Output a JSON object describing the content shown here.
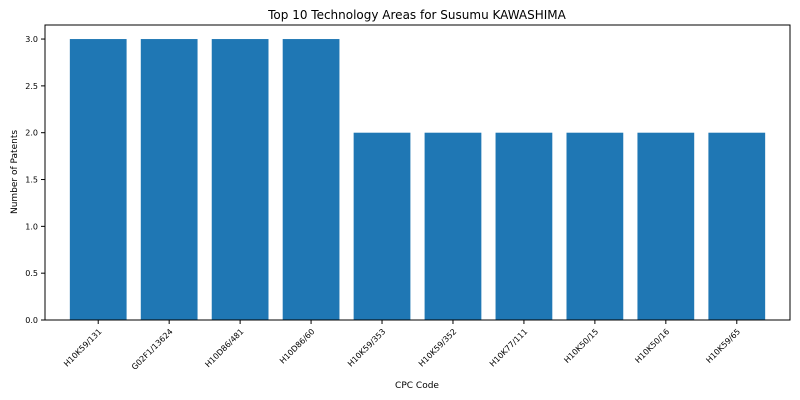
{
  "chart_data": {
    "type": "bar",
    "title": "Top 10 Technology Areas for Susumu KAWASHIMA",
    "xlabel": "CPC Code",
    "ylabel": "Number of Patents",
    "categories": [
      "H10K59/131",
      "G02F1/13624",
      "H10D86/481",
      "H10D86/60",
      "H10K59/353",
      "H10K59/352",
      "H10K77/111",
      "H10K50/15",
      "H10K50/16",
      "H10K59/65"
    ],
    "values": [
      3,
      3,
      3,
      3,
      2,
      2,
      2,
      2,
      2,
      2
    ],
    "ylim": [
      0,
      3.15
    ],
    "yticks": [
      0.0,
      0.5,
      1.0,
      1.5,
      2.0,
      2.5,
      3.0
    ],
    "ytick_labels": [
      "0.0",
      "0.5",
      "1.0",
      "1.5",
      "2.0",
      "2.5",
      "3.0"
    ],
    "grid": false,
    "bar_color": "#1f77b4"
  }
}
